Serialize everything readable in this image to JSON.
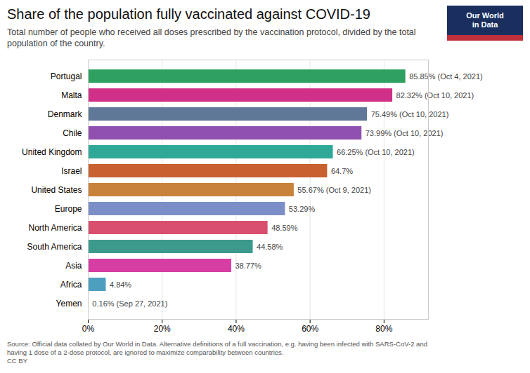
{
  "chart_data": {
    "type": "bar",
    "orientation": "horizontal",
    "title": "Share of the population fully vaccinated against COVID-19",
    "subtitle": "Total number of people who received all doses prescribed by the vaccination protocol, divided by the total\npopulation of the country.",
    "source": "Source: Official data collated by Our World in Data. Alternative definitions of a full vaccination, e.g. having been infected with SARS-CoV-2 and\nhaving 1 dose of a 2-dose protocol, are ignored to maximize comparability between countries.\nCC BY",
    "annotations": [
      "Our World\nin Data"
    ],
    "categories": [
      "Yemen",
      "Africa",
      "Asia",
      "South America",
      "North America",
      "Europe",
      "United States",
      "Israel",
      "United Kingdom",
      "Chile",
      "Denmark",
      "Malta",
      "Portugal"
    ],
    "values": [
      0.16,
      4.84,
      38.77,
      44.58,
      48.59,
      53.29,
      55.67,
      64.7,
      66.25,
      73.99,
      75.49,
      82.32,
      85.85
    ],
    "value_labels": [
      "0.16% (Sep 27, 2021)",
      "4.84%",
      "38.77%",
      "44.58%",
      "48.59%",
      "53.29%",
      "55.67% (Oct 9, 2021)",
      "64.7%",
      "66.25% (Oct 10, 2021)",
      "73.99% (Oct 10, 2021)",
      "75.49% (Oct 10, 2021)",
      "82.32% (Oct 10, 2021)",
      "85.85% (Oct 4, 2021)"
    ],
    "colors": [
      "#c8c8c8",
      "#4d9fc0",
      "#d63ea3",
      "#3b9a8c",
      "#d94f6e",
      "#7b8ec8",
      "#c8823a",
      "#c86030",
      "#30a898",
      "#9050b0",
      "#607898",
      "#d03088",
      "#30a060"
    ],
    "xlim": [
      0,
      92
    ],
    "xticks": [
      {
        "value": 0,
        "label": "0%"
      },
      {
        "value": 20,
        "label": "20%"
      },
      {
        "value": 40,
        "label": "40%"
      },
      {
        "value": 60,
        "label": "60%"
      },
      {
        "value": 80,
        "label": "80%"
      }
    ],
    "grid": true,
    "data_labels": true
  }
}
